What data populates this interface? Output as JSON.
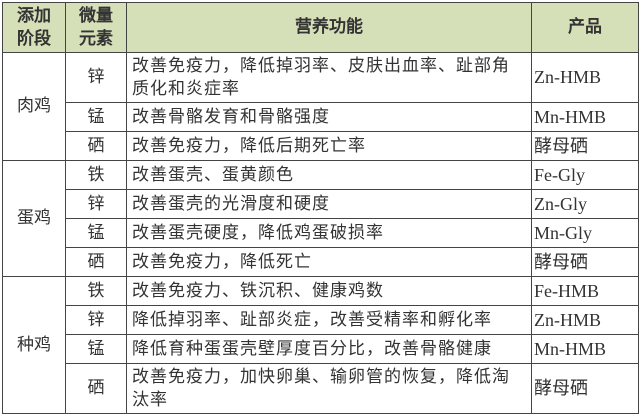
{
  "header": {
    "stage": "添加阶段",
    "element": "微量元素",
    "function": "营养功能",
    "product": "产品"
  },
  "header_color": "#d6e0b8",
  "groups": [
    {
      "stage": "肉鸡",
      "rows": [
        {
          "element": "锌",
          "function": "改善免疫力，降低掉羽率、皮肤出血率、趾部角质化和炎症率",
          "product": "Zn-HMB"
        },
        {
          "element": "锰",
          "function": "改善骨骼发育和骨骼强度",
          "product": "Mn-HMB"
        },
        {
          "element": "硒",
          "function": "改善免疫力，降低后期死亡率",
          "product": "酵母硒"
        }
      ]
    },
    {
      "stage": "蛋鸡",
      "rows": [
        {
          "element": "铁",
          "function": "改善蛋壳、蛋黄颜色",
          "product": "Fe-Gly"
        },
        {
          "element": "锌",
          "function": "改善蛋壳的光滑度和硬度",
          "product": "Zn-Gly"
        },
        {
          "element": "锰",
          "function": "改善蛋壳硬度，降低鸡蛋破损率",
          "product": "Mn-Gly"
        },
        {
          "element": "硒",
          "function": "改善免疫力，降低死亡",
          "product": "酵母硒"
        }
      ]
    },
    {
      "stage": "种鸡",
      "rows": [
        {
          "element": "铁",
          "function": "改善免疫力、铁沉积、健康鸡数",
          "product": "Fe-HMB"
        },
        {
          "element": "锌",
          "function": "降低掉羽率、趾部炎症，改善受精率和孵化率",
          "product": "Zn-HMB"
        },
        {
          "element": "锰",
          "function": "降低育种蛋蛋壳壁厚度百分比，改善骨骼健康",
          "product": "Mn-HMB"
        },
        {
          "element": "硒",
          "function": "改善免疫力，加快卵巢、输卵管的恢复，降低淘汰率",
          "product": "酵母硒"
        }
      ]
    }
  ]
}
